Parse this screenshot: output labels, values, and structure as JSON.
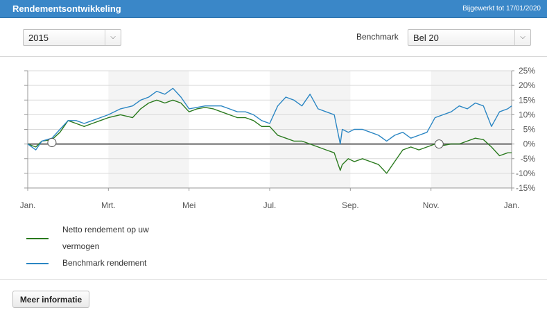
{
  "header": {
    "title": "Rendementsontwikkeling",
    "updated": "Bijgewerkt tot 17/01/2020"
  },
  "controls": {
    "year": "2015",
    "benchmark_label": "Benchmark",
    "benchmark": "Bel 20"
  },
  "legend": {
    "netto_line1": "Netto rendement op uw",
    "netto_line2": "vermogen",
    "benchmark": "Benchmark rendement"
  },
  "buttons": {
    "more": "Meer informatie"
  },
  "colors": {
    "header": "#3a87c8",
    "netto": "#2a7a1e",
    "benchmark": "#2b86c3",
    "zero_line": "#666666",
    "shade": "#f4f4f4"
  },
  "chart_data": {
    "type": "line",
    "title": "",
    "xlabel": "",
    "ylabel": "",
    "x_ticks": [
      "Jan.",
      "Mrt.",
      "Mei",
      "Jul.",
      "Sep.",
      "Nov.",
      "Jan."
    ],
    "y_ticks": [
      "25%",
      "20%",
      "15%",
      "10%",
      "5%",
      "0%",
      "-5%",
      "-10%",
      "-15%"
    ],
    "ylim": [
      -15,
      25
    ],
    "xlim": [
      0,
      12
    ],
    "shaded_months": [
      [
        2,
        4
      ],
      [
        6,
        8
      ],
      [
        10,
        12
      ]
    ],
    "series": [
      {
        "name": "Netto rendement op uw vermogen",
        "x": [
          0,
          0.2,
          0.35,
          0.6,
          0.8,
          1.0,
          1.2,
          1.4,
          1.6,
          1.8,
          2.0,
          2.3,
          2.6,
          2.8,
          3.0,
          3.2,
          3.4,
          3.6,
          3.8,
          4.0,
          4.2,
          4.4,
          4.6,
          4.8,
          5.0,
          5.2,
          5.4,
          5.6,
          5.8,
          6.0,
          6.2,
          6.4,
          6.6,
          6.8,
          7.0,
          7.2,
          7.4,
          7.6,
          7.75,
          7.8,
          7.95,
          8.1,
          8.3,
          8.5,
          8.7,
          8.9,
          9.1,
          9.3,
          9.5,
          9.7,
          9.9,
          10.1,
          10.3,
          10.5,
          10.7,
          10.9,
          11.1,
          11.3,
          11.5,
          11.7,
          11.9,
          12.0
        ],
        "values": [
          0,
          -1,
          1,
          1.5,
          4,
          8,
          7,
          6,
          7,
          8,
          9,
          10,
          9,
          12,
          14,
          15,
          14,
          15,
          14,
          11,
          12,
          12.5,
          12,
          11,
          10,
          9,
          9,
          8,
          6,
          6,
          3,
          2,
          1,
          1,
          0,
          -1,
          -2,
          -3,
          -9,
          -7,
          -5,
          -6,
          -5,
          -6,
          -7,
          -10,
          -6,
          -2,
          -1,
          -2,
          -1,
          0,
          -0.5,
          0,
          0,
          1,
          2,
          1.5,
          -1,
          -4,
          -3,
          -3
        ]
      },
      {
        "name": "Benchmark rendement",
        "x": [
          0,
          0.2,
          0.35,
          0.6,
          0.8,
          1.0,
          1.2,
          1.4,
          1.6,
          1.8,
          2.0,
          2.3,
          2.6,
          2.8,
          3.0,
          3.2,
          3.4,
          3.6,
          3.8,
          4.0,
          4.2,
          4.4,
          4.6,
          4.8,
          5.0,
          5.2,
          5.4,
          5.6,
          5.8,
          6.0,
          6.2,
          6.4,
          6.6,
          6.8,
          7.0,
          7.2,
          7.4,
          7.6,
          7.75,
          7.8,
          7.95,
          8.1,
          8.3,
          8.5,
          8.7,
          8.9,
          9.1,
          9.3,
          9.5,
          9.7,
          9.9,
          10.1,
          10.3,
          10.5,
          10.7,
          10.9,
          11.1,
          11.3,
          11.5,
          11.7,
          11.9,
          12.0
        ],
        "values": [
          0,
          -2,
          1,
          2,
          5,
          8,
          8,
          7,
          8,
          9,
          10,
          12,
          13,
          15,
          16,
          18,
          17,
          19,
          16,
          12,
          12.5,
          13,
          13,
          13,
          12,
          11,
          11,
          10,
          8,
          7,
          13,
          16,
          15,
          13,
          17,
          12,
          11,
          10,
          0,
          5,
          4,
          5,
          5,
          4,
          3,
          1,
          3,
          4,
          2,
          3,
          4,
          9,
          10,
          11,
          13,
          12,
          14,
          13,
          6,
          11,
          12,
          13
        ]
      }
    ]
  }
}
